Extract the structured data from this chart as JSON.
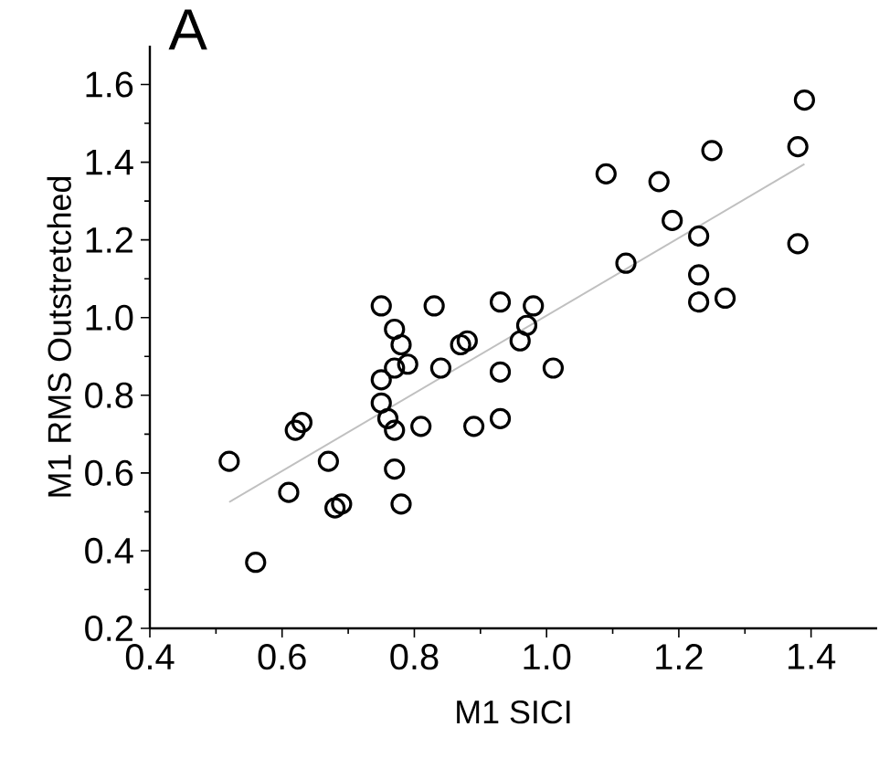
{
  "chart_data": {
    "type": "scatter",
    "title": "A",
    "xlabel": "M1 SICI",
    "ylabel": "M1 RMS Outstretched",
    "xlim": [
      0.4,
      1.5
    ],
    "ylim": [
      0.2,
      1.7
    ],
    "xticks": [
      {
        "value": 0.4,
        "label": "0.4"
      },
      {
        "value": 0.6,
        "label": "0.6"
      },
      {
        "value": 0.8,
        "label": "0.8"
      },
      {
        "value": 1.0,
        "label": "1.0"
      },
      {
        "value": 1.2,
        "label": "1.2"
      },
      {
        "value": 1.4,
        "label": "1.4"
      }
    ],
    "yticks": [
      {
        "value": 0.2,
        "label": "0.2"
      },
      {
        "value": 0.4,
        "label": "0.4"
      },
      {
        "value": 0.6,
        "label": "0.6"
      },
      {
        "value": 0.8,
        "label": "0.8"
      },
      {
        "value": 1.0,
        "label": "1.0"
      },
      {
        "value": 1.2,
        "label": "1.2"
      },
      {
        "value": 1.4,
        "label": "1.4"
      },
      {
        "value": 1.6,
        "label": "1.6"
      }
    ],
    "series": [
      {
        "type": "line",
        "color": "#c0c0c0",
        "marker": "none",
        "x": [
          0.52,
          1.39
        ],
        "values": [
          0.525,
          1.395
        ]
      },
      {
        "color": "#000000",
        "marker": "circle",
        "x": [
          0.52,
          0.56,
          0.61,
          0.62,
          0.63,
          0.67,
          0.68,
          0.69,
          0.75,
          0.75,
          0.75,
          0.76,
          0.77,
          0.78,
          0.77,
          0.79,
          0.77,
          0.77,
          0.78,
          0.81,
          0.83,
          0.84,
          0.87,
          0.88,
          0.89,
          0.93,
          0.93,
          0.93,
          0.96,
          0.97,
          0.98,
          1.01,
          1.09,
          1.12,
          1.17,
          1.19,
          1.23,
          1.23,
          1.23,
          1.25,
          1.27,
          1.38,
          1.39,
          1.38
        ],
        "values": [
          0.63,
          0.37,
          0.55,
          0.71,
          0.73,
          0.63,
          0.51,
          0.52,
          1.03,
          0.84,
          0.78,
          0.74,
          0.97,
          0.93,
          0.87,
          0.88,
          0.71,
          0.61,
          0.52,
          0.72,
          1.03,
          0.87,
          0.93,
          0.94,
          0.72,
          1.04,
          0.86,
          0.74,
          0.94,
          0.98,
          1.03,
          0.87,
          1.37,
          1.14,
          1.35,
          1.25,
          1.21,
          1.11,
          1.04,
          1.43,
          1.05,
          1.44,
          1.56,
          1.19
        ]
      }
    ]
  }
}
